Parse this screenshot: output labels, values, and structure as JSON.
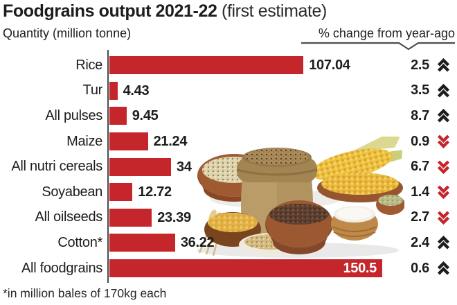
{
  "title": {
    "main": "Foodgrains output 2021-22",
    "suffix": " (first estimate)"
  },
  "headers": {
    "left": "Quantity (million tonne)",
    "right": "% change from year-ago"
  },
  "footnote": "*in million bales of 170kg each",
  "colors": {
    "bar": "#c5262c",
    "up_arrow": "#1d1d1b",
    "down_arrow": "#c5262c",
    "axis": "#4a4a4a"
  },
  "chart_data": {
    "type": "bar",
    "orientation": "horizontal",
    "title": "Foodgrains output 2021-22 (first estimate)",
    "xlabel": "Quantity (million tonne)",
    "right_column_label": "% change from year-ago",
    "categories": [
      "Rice",
      "Tur",
      "All pulses",
      "Maize",
      "All nutri cereals",
      "Soyabean",
      "All oilseeds",
      "Cotton*",
      "All foodgrains"
    ],
    "values": [
      107.04,
      4.43,
      9.45,
      21.24,
      34,
      12.72,
      23.39,
      36.22,
      150.5
    ],
    "value_labels": [
      "107.04",
      "4.43",
      "9.45",
      "21.24",
      "34",
      "12.72",
      "23.39",
      "36.22",
      "150.5"
    ],
    "pct_change_from_year_ago": [
      "2.5",
      "3.5",
      "8.7",
      "0.9",
      "6.7",
      "1.4",
      "2.7",
      "2.4",
      "0.6"
    ],
    "pct_direction": [
      "up",
      "up",
      "up",
      "down",
      "down",
      "down",
      "down",
      "up",
      "up"
    ],
    "value_label_inside": [
      false,
      false,
      false,
      false,
      false,
      false,
      false,
      false,
      true
    ],
    "xlim": [
      0,
      155
    ],
    "grid": false,
    "legend": false,
    "note": "*in million bales of 170kg each"
  }
}
